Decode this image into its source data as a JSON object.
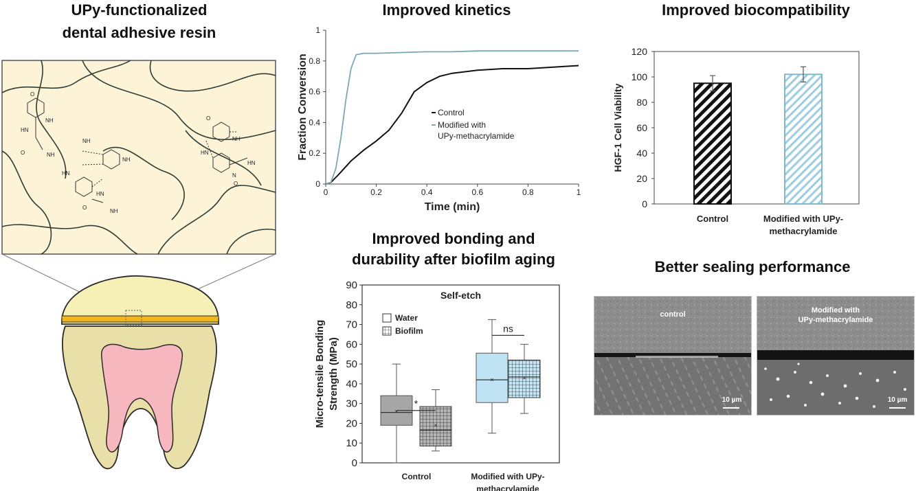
{
  "panels": {
    "adhesive": {
      "title_line1": "UPy-functionalized",
      "title_line2": "dental adhesive resin"
    },
    "kinetics": {
      "title": "Improved kinetics",
      "legend_control": "Control",
      "legend_modified_line1": "Modified with",
      "legend_modified_line2": "UPy-methacrylamide"
    },
    "biocompat": {
      "title": "Improved biocompatibility"
    },
    "bonding": {
      "title_line1": "Improved bonding and",
      "title_line2": "durability after biofilm aging"
    },
    "sealing": {
      "title": "Better sealing performance",
      "left_label": "control",
      "right_label_line1": "Modified with",
      "right_label_line2": "UPy-methacrylamide",
      "scale_left": "10 µm",
      "scale_right": "10 µm"
    }
  },
  "chart_data": [
    {
      "type": "line",
      "title": "Improved kinetics",
      "xlabel": "Time (min)",
      "ylabel": "Fraction Conversion",
      "xlim": [
        0,
        1
      ],
      "ylim": [
        0,
        1
      ],
      "xticks": [
        "0",
        "0.2",
        "0.4",
        "0.6",
        "0.8",
        "1"
      ],
      "yticks": [
        "0",
        "0.2",
        "0.4",
        "0.6",
        "0.8",
        "1"
      ],
      "grid": false,
      "legend": "center-right",
      "series": [
        {
          "name": "Control",
          "color": "#111111",
          "x": [
            0,
            0.02,
            0.05,
            0.1,
            0.15,
            0.2,
            0.25,
            0.3,
            0.35,
            0.4,
            0.45,
            0.5,
            0.6,
            0.7,
            0.8,
            0.9,
            1.0
          ],
          "y": [
            0,
            0.01,
            0.06,
            0.15,
            0.22,
            0.28,
            0.35,
            0.46,
            0.6,
            0.66,
            0.7,
            0.72,
            0.74,
            0.75,
            0.75,
            0.76,
            0.77
          ]
        },
        {
          "name": "Modified with UPy-methacrylamide",
          "color": "#7aa7b3",
          "x": [
            0,
            0.02,
            0.04,
            0.06,
            0.08,
            0.1,
            0.12,
            0.15,
            0.2,
            0.3,
            0.4,
            0.5,
            0.6,
            0.7,
            0.8,
            0.9,
            1.0
          ],
          "y": [
            0,
            0.01,
            0.1,
            0.3,
            0.55,
            0.75,
            0.84,
            0.85,
            0.85,
            0.855,
            0.86,
            0.86,
            0.865,
            0.865,
            0.865,
            0.865,
            0.865
          ]
        }
      ]
    },
    {
      "type": "bar",
      "title": "Improved biocompatibility",
      "xlabel": "",
      "ylabel": "HGF-1 Cell Viability",
      "ylim": [
        0,
        120
      ],
      "yticks": [
        "0",
        "20",
        "40",
        "60",
        "80",
        "100",
        "120"
      ],
      "categories": [
        "Control",
        "Modified with UPy-methacrylamide"
      ],
      "category_lines": [
        [
          "Control"
        ],
        [
          "Modified with UPy-",
          "methacrylamide"
        ]
      ],
      "values": [
        95,
        102
      ],
      "errors": [
        6,
        6
      ],
      "colors": [
        "#111111",
        "#9ccde0"
      ]
    },
    {
      "type": "box",
      "title": "Self-etch",
      "xlabel": "",
      "ylabel_line1": "Micro-tensile Bonding",
      "ylabel_line2": "Strength (MPa)",
      "ylim": [
        0,
        90
      ],
      "yticks": [
        "0",
        "10",
        "20",
        "30",
        "40",
        "50",
        "60",
        "70",
        "80",
        "90"
      ],
      "legend": "top-left",
      "legend_entries": [
        "Water",
        "Biofilm"
      ],
      "categories": [
        "Control",
        "Modified with UPy-methacrylamide"
      ],
      "category_lines": [
        [
          "Control"
        ],
        [
          "Modified with UPy-",
          "methacrylamide"
        ]
      ],
      "significance": [
        "*",
        "ns"
      ],
      "boxes": [
        {
          "group": "Control",
          "series": "Water",
          "min": 0,
          "q1": 19,
          "median": 25.5,
          "q3": 34,
          "max": 50,
          "mean": 26
        },
        {
          "group": "Control",
          "series": "Biofilm",
          "min": 6,
          "q1": 8.5,
          "median": 16.5,
          "q3": 28.5,
          "max": 37,
          "mean": 19
        },
        {
          "group": "Modified with UPy-methacrylamide",
          "series": "Water",
          "min": 15,
          "q1": 30.5,
          "median": 42,
          "q3": 55.5,
          "max": 72.5,
          "mean": 42
        },
        {
          "group": "Modified with UPy-methacrylamide",
          "series": "Biofilm",
          "min": 25,
          "q1": 33,
          "median": 43.5,
          "q3": 52,
          "max": 60,
          "mean": 43
        }
      ]
    }
  ]
}
